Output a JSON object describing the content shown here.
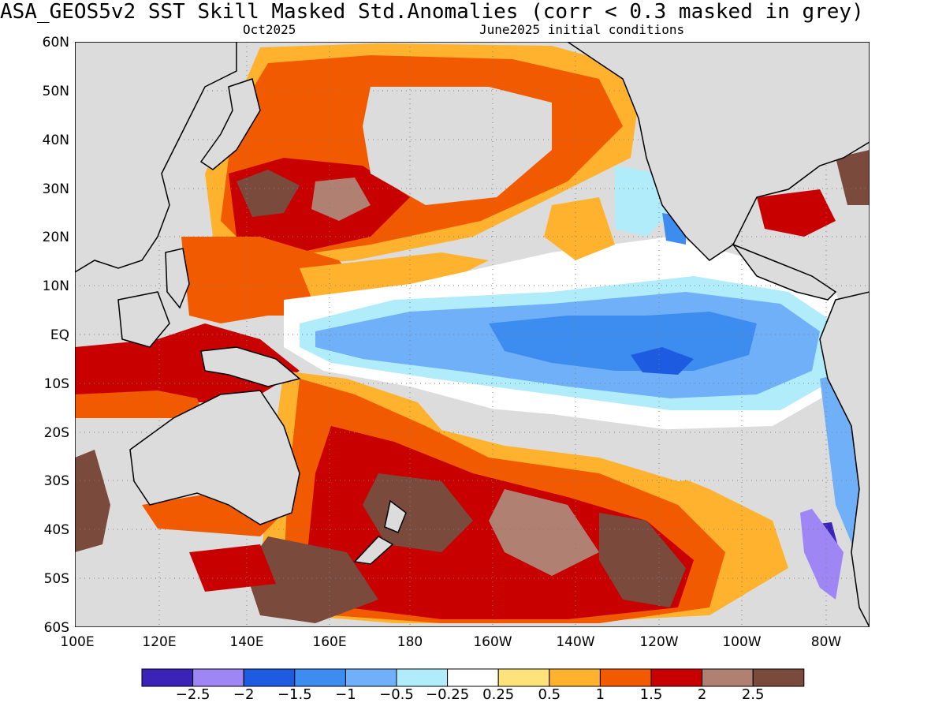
{
  "title": "ASA_GEOS5v2  SST Skill Masked Std.Anomalies (corr < 0.3 masked in grey)",
  "subtitle_left": "Oct2025",
  "subtitle_right": "June2025 initial conditions",
  "lat_labels": [
    "60N",
    "50N",
    "40N",
    "30N",
    "20N",
    "10N",
    "EQ",
    "10S",
    "20S",
    "30S",
    "40S",
    "50S",
    "60S"
  ],
  "lon_labels": [
    "100E",
    "120E",
    "140E",
    "160E",
    "180",
    "160W",
    "140W",
    "120W",
    "100W",
    "80W"
  ],
  "colorbar": {
    "colors": [
      "#3b23b8",
      "#9e86f5",
      "#1d5ce0",
      "#3d8df0",
      "#6fb0f8",
      "#b0ecfa",
      "#ffffff",
      "#ffe27a",
      "#ffb22e",
      "#f25a00",
      "#c80000",
      "#b08072",
      "#7a4a3c"
    ],
    "labels": [
      "-2.5",
      "-2",
      "-1.5",
      "-1",
      "-0.5",
      "-0.25",
      "0.25",
      "0.5",
      "1",
      "1.5",
      "2",
      "2.5"
    ]
  },
  "colors": {
    "mask_grey": "#dcdcdc",
    "coast": "#000000",
    "grid": "#808080"
  }
}
